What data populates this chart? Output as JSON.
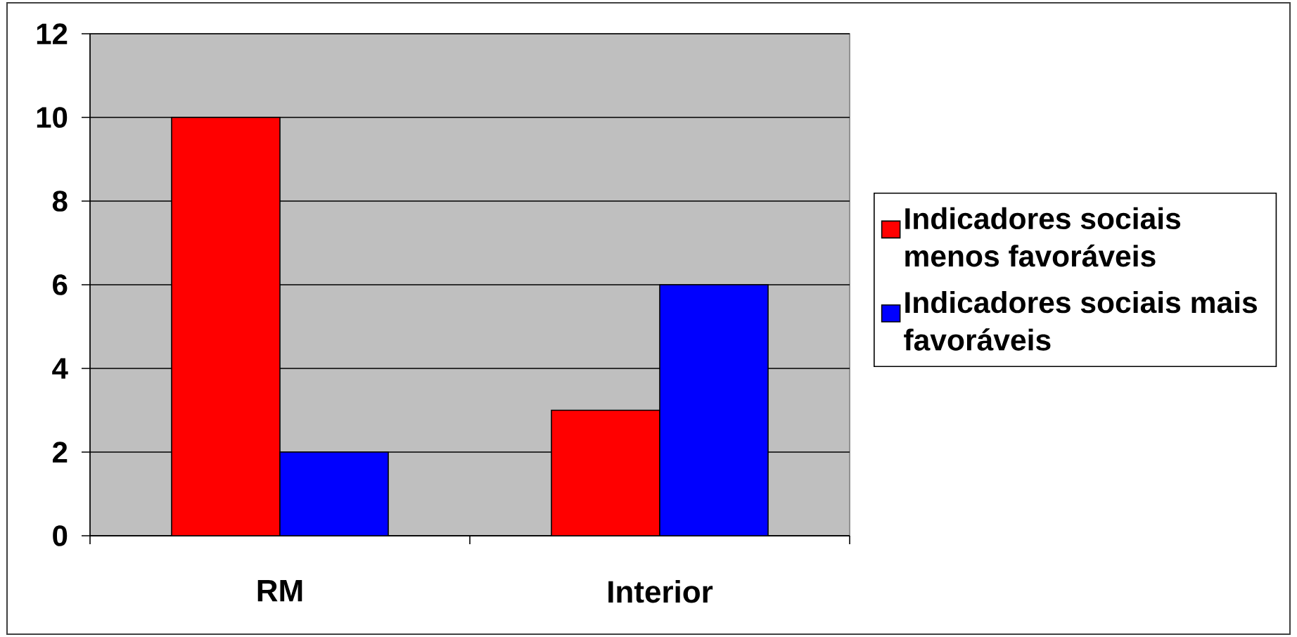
{
  "chart_data": {
    "type": "bar",
    "categories": [
      "RM",
      "Interior"
    ],
    "series": [
      {
        "name": "Indicadores sociais menos favoráveis",
        "color": "#ff0000",
        "values": [
          10,
          3
        ]
      },
      {
        "name": "Indicadores sociais mais favoráveis",
        "color": "#0000ff",
        "values": [
          2,
          6
        ]
      }
    ],
    "ylim": [
      0,
      12
    ],
    "yticks": [
      0,
      2,
      4,
      6,
      8,
      10,
      12
    ],
    "grid": "y",
    "legend": "right"
  }
}
